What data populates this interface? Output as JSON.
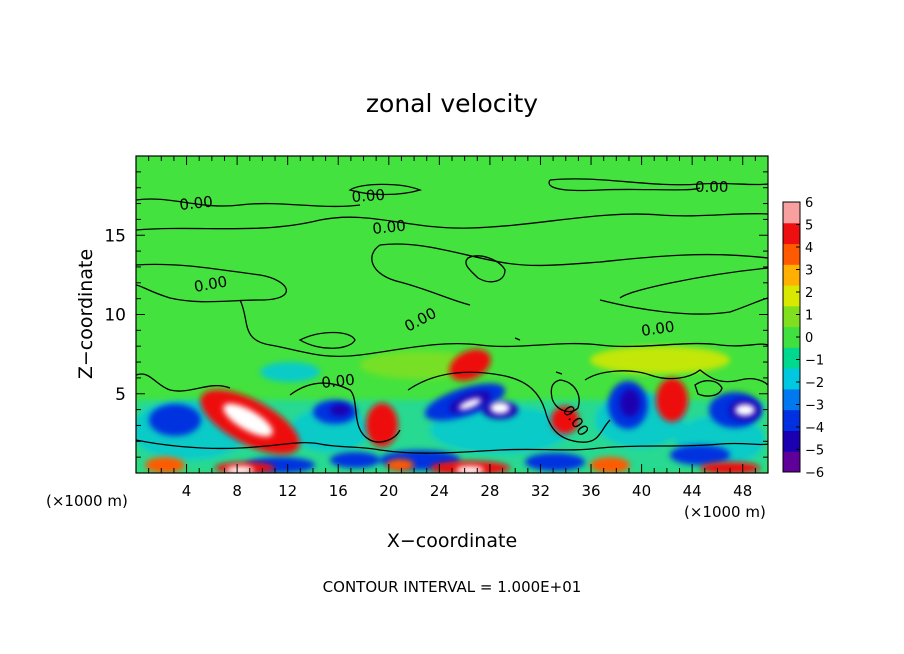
{
  "chart_data": {
    "type": "heatmap",
    "title": "zonal velocity",
    "xlabel": "X−coordinate",
    "ylabel": "Z−coordinate",
    "x_unit": "(×1000 m)",
    "x_unit_right": "(×1000 m)",
    "xlim": [
      0,
      50
    ],
    "ylim": [
      0,
      20
    ],
    "x_ticks": [
      4,
      8,
      12,
      16,
      20,
      24,
      28,
      32,
      36,
      40,
      44,
      48
    ],
    "x_tick_labels": [
      "4",
      "8",
      "12",
      "16",
      "20",
      "24",
      "28",
      "32",
      "36",
      "40",
      "44",
      "48"
    ],
    "y_ticks": [
      5,
      10,
      15
    ],
    "y_tick_labels": [
      "5",
      "10",
      "15"
    ],
    "contour_labels": [
      "0.00",
      "0.00",
      "0.00",
      "0.00",
      "0.00",
      "0.00",
      "0.00",
      "0.00",
      "0.00"
    ],
    "contour_interval_text": "CONTOUR INTERVAL = 1.000E+01",
    "colorbar": {
      "min": -6,
      "max": 6,
      "tick_labels": [
        "6",
        "5",
        "4",
        "3",
        "2",
        "1",
        "0",
        "−1",
        "−2",
        "−3",
        "−4",
        "−5",
        "−6"
      ],
      "colors": [
        "#60009a",
        "#1a00b0",
        "#0030e0",
        "#0078f0",
        "#00c8e0",
        "#00d890",
        "#40e040",
        "#80e020",
        "#d8e800",
        "#ffb000",
        "#ff5a00",
        "#ee1010",
        "#f8a0a0"
      ]
    },
    "colors": {
      "background": "#44e23e",
      "contour": "#000000"
    }
  }
}
